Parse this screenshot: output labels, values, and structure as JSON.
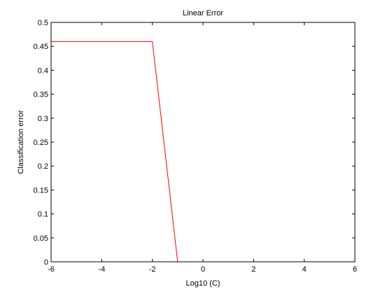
{
  "chart_data": {
    "type": "line",
    "title": "Linear Error",
    "xlabel": "Log10 (C)",
    "ylabel": "Classification error",
    "xlim": [
      -6,
      6
    ],
    "ylim": [
      0,
      0.5
    ],
    "xticks": [
      -6,
      -4,
      -2,
      0,
      2,
      4,
      6
    ],
    "xtick_labels": [
      "-6",
      "-4",
      "-2",
      "0",
      "2",
      "4",
      "6"
    ],
    "yticks": [
      0,
      0.05,
      0.1,
      0.15,
      0.2,
      0.25,
      0.3,
      0.35,
      0.4,
      0.45,
      0.5
    ],
    "ytick_labels": [
      "0",
      "0.05",
      "0.1",
      "0.15",
      "0.2",
      "0.25",
      "0.3",
      "0.35",
      "0.4",
      "0.45",
      "0.5"
    ],
    "grid": false,
    "series": [
      {
        "color": "#ff0000",
        "x": [
          -6,
          -5,
          -4,
          -3,
          -2,
          -1,
          0,
          1,
          2,
          3,
          4,
          5,
          6
        ],
        "y": [
          0.46,
          0.46,
          0.46,
          0.46,
          0.46,
          0,
          0,
          0,
          0,
          0,
          0,
          0,
          0
        ]
      }
    ]
  }
}
